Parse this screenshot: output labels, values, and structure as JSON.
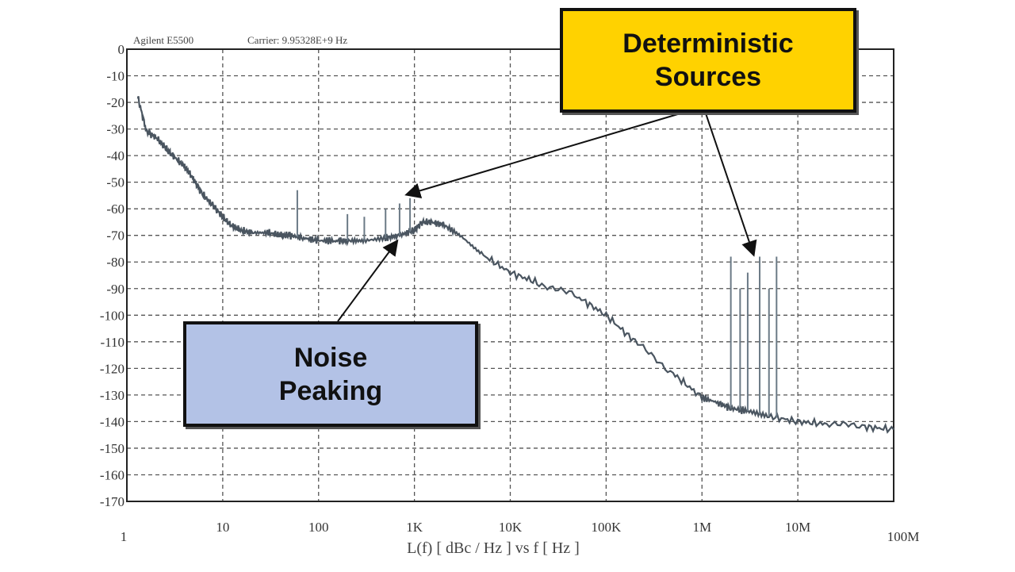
{
  "chart_data": {
    "type": "line",
    "header": {
      "instrument": "Agilent E5500",
      "carrier": "Carrier: 9.95328E+9 Hz"
    },
    "title": "",
    "xlabel": "L(f) [ dBc / Hz ] vs f [ Hz ]",
    "ylabel": "",
    "x_scale": "log",
    "xlim": [
      1,
      100000000
    ],
    "ylim": [
      -170,
      0
    ],
    "grid": true,
    "x_ticks": [
      {
        "value": 1,
        "label": "1"
      },
      {
        "value": 10,
        "label": "10"
      },
      {
        "value": 100,
        "label": "100"
      },
      {
        "value": 1000,
        "label": "1K"
      },
      {
        "value": 10000,
        "label": "10K"
      },
      {
        "value": 100000,
        "label": "100K"
      },
      {
        "value": 1000000,
        "label": "1M"
      },
      {
        "value": 10000000,
        "label": "10M"
      },
      {
        "value": 100000000,
        "label": "100M"
      }
    ],
    "y_ticks": [
      0,
      -10,
      -20,
      -30,
      -40,
      -50,
      -60,
      -70,
      -80,
      -90,
      -100,
      -110,
      -120,
      -130,
      -140,
      -150,
      -160,
      -170
    ],
    "series": [
      {
        "color": "#4a5560",
        "x": [
          1.3,
          1.6,
          2,
          2.5,
          3,
          4,
          5,
          6,
          8,
          10,
          12,
          15,
          20,
          30,
          40,
          50,
          70,
          100,
          150,
          200,
          300,
          500,
          700,
          1000,
          1200,
          1500,
          2000,
          3000,
          5000,
          10000,
          20000,
          50000,
          100000,
          200000,
          500000,
          1000000,
          1500000,
          2000000,
          3000000,
          5000000,
          10000000,
          20000000,
          50000000,
          100000000
        ],
        "y": [
          -18,
          -31,
          -33,
          -37,
          -40,
          -44,
          -49,
          -54,
          -59,
          -63,
          -66,
          -68,
          -69,
          -69,
          -70,
          -70,
          -71,
          -72,
          -72,
          -72,
          -72,
          -71,
          -70,
          -68,
          -65,
          -65,
          -66,
          -70,
          -77,
          -84,
          -88,
          -93,
          -100,
          -110,
          -122,
          -131,
          -133,
          -135,
          -136,
          -138,
          -140,
          -141,
          -142,
          -143
        ]
      }
    ],
    "spurs": [
      {
        "x": 60,
        "y": -53
      },
      {
        "x": 200,
        "y": -62
      },
      {
        "x": 300,
        "y": -63
      },
      {
        "x": 500,
        "y": -60
      },
      {
        "x": 700,
        "y": -58
      },
      {
        "x": 900,
        "y": -56
      },
      {
        "x": 2000000,
        "y": -78
      },
      {
        "x": 2500000,
        "y": -90
      },
      {
        "x": 3000000,
        "y": -84
      },
      {
        "x": 4000000,
        "y": -78
      },
      {
        "x": 5000000,
        "y": -90
      },
      {
        "x": 6000000,
        "y": -78
      }
    ]
  },
  "callouts": {
    "deterministic": {
      "text": "Deterministic\nSources",
      "color": "#ffd200"
    },
    "noise": {
      "text": "Noise\nPeaking",
      "color": "#b3c2e6"
    }
  }
}
